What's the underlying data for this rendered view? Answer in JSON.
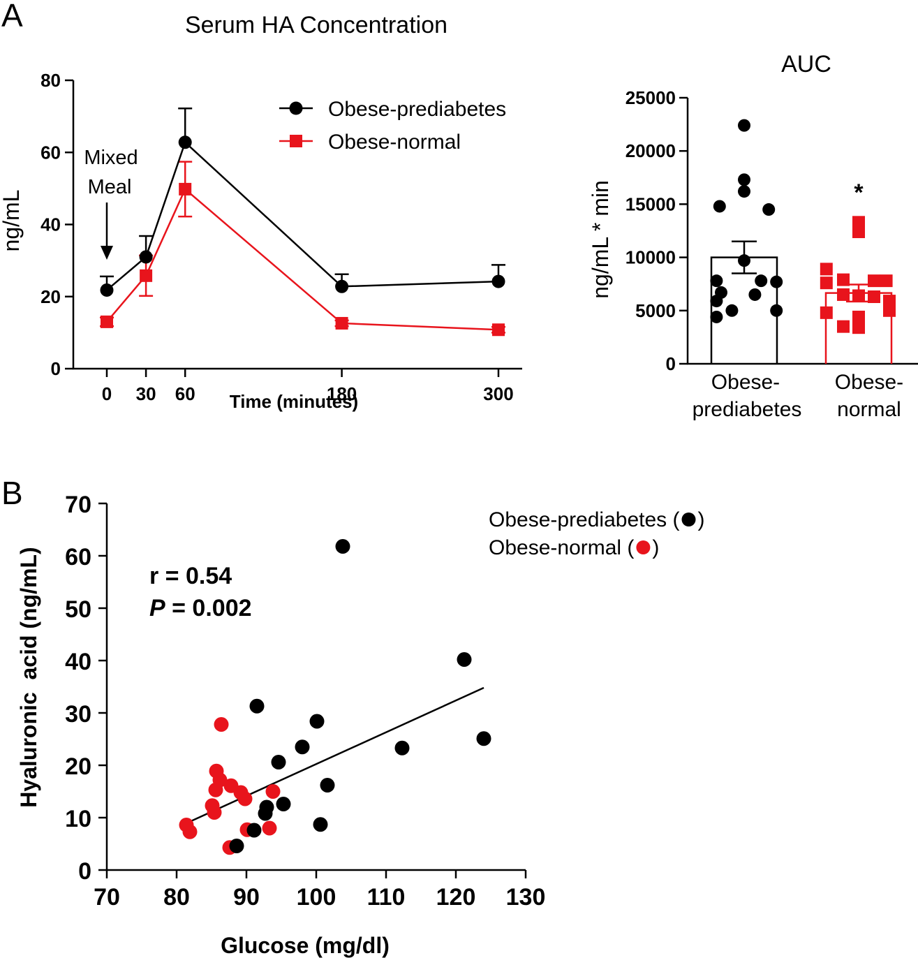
{
  "panel_a_letter": "A",
  "panel_b_letter": "B",
  "colors": {
    "black": "#000000",
    "red": "#e8141c"
  },
  "chart_data": [
    {
      "type": "line",
      "id": "serum-ha",
      "title": "Serum HA Concentration",
      "xlabel": "Time (minutes)",
      "ylabel": "ng/mL",
      "x": [
        0,
        30,
        60,
        180,
        300
      ],
      "x_ticks": [
        "0",
        "30",
        "60",
        "180",
        "300"
      ],
      "ylim": [
        0,
        80
      ],
      "y_ticks": [
        "0",
        "20",
        "40",
        "60",
        "80"
      ],
      "series": [
        {
          "name": "Obese-prediabetes",
          "marker": "circle",
          "color": "#000000",
          "values": [
            21.8,
            31,
            62.8,
            22.8,
            24.2
          ],
          "errors": [
            3.8,
            5.8,
            9.4,
            3.4,
            4.6
          ],
          "error_dir": "up"
        },
        {
          "name": "Obese-normal",
          "marker": "square",
          "color": "#e8141c",
          "values": [
            13,
            25.8,
            49.8,
            12.6,
            10.8
          ],
          "errors": [
            1.2,
            5.6,
            7.6,
            0.8,
            0.8
          ],
          "error_dir": "both"
        }
      ],
      "annotation": {
        "line1": "Mixed",
        "line2": "Meal"
      }
    },
    {
      "type": "bar",
      "id": "auc",
      "title": "AUC",
      "ylabel": "ng/mL * min",
      "ylim": [
        0,
        25000
      ],
      "y_ticks": [
        "0",
        "5000",
        "10000",
        "15000",
        "20000",
        "25000"
      ],
      "categories": [
        {
          "line1": "Obese-",
          "line2": "prediabetes"
        },
        {
          "line1": "Obese-",
          "line2": "normal"
        }
      ],
      "values": [
        10000,
        6650
      ],
      "sem": [
        1500,
        800
      ],
      "significance": "*",
      "points": [
        [
          22400,
          17300,
          16200,
          14800,
          14500,
          9700,
          7800,
          7800,
          7700,
          6700,
          6500,
          5900,
          5000,
          5000,
          4400
        ],
        [
          13300,
          12400,
          8900,
          7900,
          7800,
          7800,
          7600,
          6500,
          6400,
          6300,
          5900,
          5000,
          4800,
          4400,
          3500,
          3400
        ]
      ]
    },
    {
      "type": "scatter",
      "id": "glucose-ha",
      "xlabel": "Glucose (mg/dl)",
      "ylabel": "Hyaluronic  acid (ng/mL)",
      "xlim": [
        70,
        130
      ],
      "ylim": [
        0,
        70
      ],
      "x_ticks": [
        "70",
        "80",
        "90",
        "100",
        "110",
        "120",
        "130"
      ],
      "y_ticks": [
        "0",
        "10",
        "20",
        "30",
        "40",
        "50",
        "60",
        "70"
      ],
      "stats": {
        "r": "r = 0.54",
        "p_label": "P",
        "p_value": " = 0.002"
      },
      "legend": [
        {
          "name": "Obese-prediabetes (",
          "suffix": ")",
          "color": "#000000"
        },
        {
          "name": "Obese-normal (",
          "suffix": ")",
          "color": "#e8141c"
        }
      ],
      "trendline": [
        [
          81.5,
          9
        ],
        [
          124,
          34.8
        ]
      ],
      "series": [
        {
          "name": "Obese-prediabetes",
          "color": "#000000",
          "points": [
            [
              103.8,
              61.8
            ],
            [
              121.2,
              40.2
            ],
            [
              91.5,
              31.3
            ],
            [
              100.1,
              28.4
            ],
            [
              124,
              25.1
            ],
            [
              98,
              23.5
            ],
            [
              112.3,
              23.3
            ],
            [
              94.6,
              20.6
            ],
            [
              101.6,
              16.2
            ],
            [
              95.3,
              12.6
            ],
            [
              92.9,
              12
            ],
            [
              92.7,
              10.8
            ],
            [
              100.6,
              8.7
            ],
            [
              91.1,
              7.6
            ],
            [
              88.6,
              4.6
            ]
          ]
        },
        {
          "name": "Obese-normal",
          "color": "#e8141c",
          "points": [
            [
              86.4,
              27.8
            ],
            [
              85.7,
              18.9
            ],
            [
              86.2,
              17.2
            ],
            [
              87.8,
              16.1
            ],
            [
              85.6,
              15.3
            ],
            [
              89.2,
              14.8
            ],
            [
              93.8,
              15
            ],
            [
              89.8,
              13.6
            ],
            [
              85.1,
              12.3
            ],
            [
              85.4,
              11
            ],
            [
              81.4,
              8.6
            ],
            [
              81.9,
              7.3
            ],
            [
              90.1,
              7.7
            ],
            [
              93.3,
              8
            ],
            [
              87.6,
              4.3
            ]
          ]
        }
      ]
    }
  ]
}
